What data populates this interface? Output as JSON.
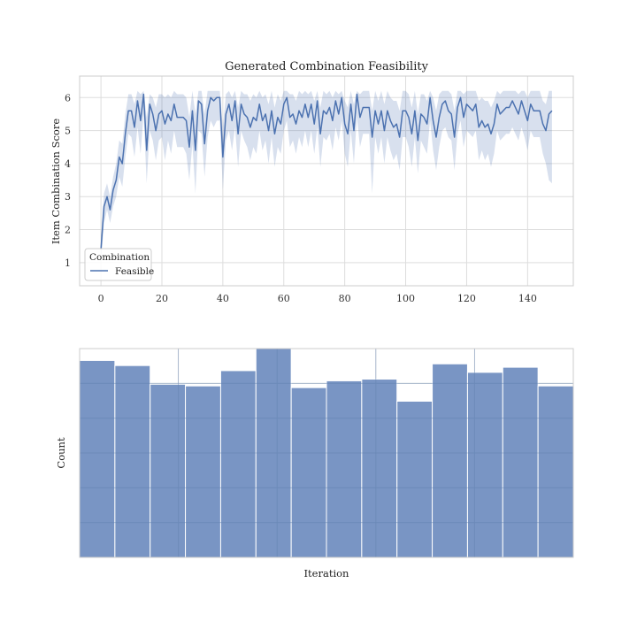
{
  "chart_data": [
    {
      "type": "line",
      "title": "Generated Combination Feasibility",
      "xlabel": "",
      "ylabel": "Item Combination Score",
      "xlim": [
        -7,
        155
      ],
      "ylim": [
        0.3,
        6.65
      ],
      "xticks": [
        0,
        20,
        40,
        60,
        80,
        100,
        120,
        140
      ],
      "yticks": [
        1,
        2,
        3,
        4,
        5,
        6
      ],
      "grid": true,
      "legend": {
        "title": "Combination",
        "placement": "lower-left"
      },
      "series": [
        {
          "name": "Feasible",
          "color": "#4c72b0",
          "x": [
            0,
            1,
            2,
            3,
            4,
            5,
            6,
            7,
            8,
            9,
            10,
            11,
            12,
            13,
            14,
            15,
            16,
            17,
            18,
            19,
            20,
            21,
            22,
            23,
            24,
            25,
            26,
            27,
            28,
            29,
            30,
            31,
            32,
            33,
            34,
            35,
            36,
            37,
            38,
            39,
            40,
            41,
            42,
            43,
            44,
            45,
            46,
            47,
            48,
            49,
            50,
            51,
            52,
            53,
            54,
            55,
            56,
            57,
            58,
            59,
            60,
            61,
            62,
            63,
            64,
            65,
            66,
            67,
            68,
            69,
            70,
            71,
            72,
            73,
            74,
            75,
            76,
            77,
            78,
            79,
            80,
            81,
            82,
            83,
            84,
            85,
            86,
            87,
            88,
            89,
            90,
            91,
            92,
            93,
            94,
            95,
            96,
            97,
            98,
            99,
            100,
            101,
            102,
            103,
            104,
            105,
            106,
            107,
            108,
            109,
            110,
            111,
            112,
            113,
            114,
            115,
            116,
            117,
            118,
            119,
            120,
            121,
            122,
            123,
            124,
            125,
            126,
            127,
            128,
            129,
            130,
            131,
            132,
            133,
            134,
            135,
            136,
            137,
            138,
            139,
            140,
            141,
            142,
            143,
            144,
            145,
            146,
            147,
            148
          ],
          "y": [
            1.4,
            2.7,
            3.0,
            2.6,
            3.2,
            3.5,
            4.2,
            4.0,
            4.9,
            5.6,
            5.6,
            5.1,
            5.9,
            5.3,
            6.1,
            4.4,
            5.8,
            5.5,
            5.0,
            5.5,
            5.6,
            5.2,
            5.5,
            5.3,
            5.8,
            5.4,
            5.4,
            5.4,
            5.3,
            4.5,
            5.6,
            4.4,
            5.9,
            5.8,
            4.6,
            5.6,
            6.0,
            5.9,
            6.0,
            6.0,
            4.2,
            5.5,
            5.8,
            5.3,
            5.9,
            4.9,
            5.8,
            5.5,
            5.4,
            5.1,
            5.4,
            5.3,
            5.8,
            5.3,
            5.5,
            5.0,
            5.6,
            4.9,
            5.4,
            5.2,
            5.8,
            6.0,
            5.4,
            5.5,
            5.2,
            5.6,
            5.4,
            5.8,
            5.4,
            5.8,
            5.2,
            5.9,
            4.9,
            5.6,
            5.5,
            5.7,
            5.3,
            5.9,
            5.5,
            6.0,
            5.2,
            4.9,
            5.8,
            5.0,
            6.1,
            5.4,
            5.7,
            5.7,
            5.7,
            4.8,
            5.6,
            5.2,
            5.6,
            5.0,
            5.6,
            5.3,
            5.1,
            5.2,
            4.8,
            5.6,
            5.6,
            5.4,
            4.9,
            5.6,
            4.7,
            5.5,
            5.4,
            5.2,
            6.0,
            5.3,
            4.8,
            5.4,
            5.8,
            5.9,
            5.6,
            5.5,
            4.8,
            5.7,
            6.0,
            5.4,
            5.8,
            5.7,
            5.6,
            5.8,
            5.1,
            5.3,
            5.1,
            5.2,
            4.9,
            5.2,
            5.8,
            5.5,
            5.6,
            5.7,
            5.7,
            5.9,
            5.7,
            5.5,
            5.9,
            5.6,
            5.3,
            5.8,
            5.6,
            5.6,
            5.6,
            5.2,
            5.0,
            5.5,
            5.6
          ],
          "ci_low": [
            1.0,
            2.2,
            2.6,
            2.2,
            2.7,
            3.0,
            3.6,
            3.3,
            4.2,
            4.9,
            4.8,
            4.2,
            5.1,
            4.3,
            5.5,
            3.4,
            5.0,
            4.7,
            4.1,
            4.7,
            4.8,
            4.1,
            4.7,
            4.3,
            5.0,
            4.5,
            4.5,
            4.5,
            4.3,
            3.5,
            4.6,
            3.1,
            5.0,
            4.9,
            3.6,
            4.8,
            5.3,
            5.1,
            5.3,
            5.3,
            3.2,
            4.7,
            5.0,
            4.4,
            5.1,
            3.9,
            5.0,
            4.7,
            4.5,
            4.1,
            4.5,
            4.3,
            5.0,
            4.4,
            4.7,
            4.0,
            4.8,
            3.9,
            4.5,
            4.3,
            5.0,
            5.3,
            4.5,
            4.7,
            4.3,
            4.8,
            4.5,
            5.0,
            4.5,
            5.0,
            4.3,
            5.1,
            3.9,
            4.8,
            4.7,
            4.9,
            4.4,
            5.1,
            4.7,
            5.3,
            4.3,
            3.9,
            5.0,
            4.0,
            5.4,
            4.5,
            4.9,
            4.9,
            4.9,
            3.1,
            4.8,
            4.3,
            4.8,
            4.0,
            4.8,
            4.4,
            4.1,
            4.3,
            3.8,
            4.8,
            4.8,
            4.5,
            3.9,
            4.8,
            3.7,
            4.7,
            4.5,
            4.3,
            5.3,
            4.4,
            3.8,
            4.5,
            5.0,
            5.1,
            4.8,
            4.7,
            3.8,
            4.9,
            5.3,
            4.5,
            5.0,
            4.9,
            4.8,
            5.0,
            4.1,
            4.4,
            4.1,
            4.3,
            3.9,
            4.3,
            5.0,
            4.7,
            4.8,
            4.9,
            4.9,
            5.1,
            4.9,
            4.7,
            5.1,
            4.8,
            4.4,
            5.0,
            4.8,
            4.8,
            4.8,
            4.3,
            4.0,
            3.5,
            3.4
          ],
          "ci_high": [
            1.8,
            3.1,
            3.4,
            3.0,
            3.6,
            4.0,
            4.7,
            4.6,
            5.5,
            6.1,
            6.1,
            5.8,
            6.2,
            6.1,
            6.2,
            5.4,
            6.1,
            6.0,
            5.7,
            6.1,
            6.1,
            6.0,
            6.1,
            6.0,
            6.2,
            6.1,
            6.1,
            6.1,
            6.0,
            5.4,
            6.2,
            5.5,
            6.2,
            6.2,
            5.5,
            6.2,
            6.2,
            6.2,
            6.2,
            6.2,
            5.1,
            6.1,
            6.2,
            6.0,
            6.2,
            5.7,
            6.2,
            6.1,
            6.1,
            5.9,
            6.1,
            6.0,
            6.2,
            6.0,
            6.1,
            5.8,
            6.2,
            5.7,
            6.1,
            5.9,
            6.2,
            6.2,
            6.1,
            6.1,
            5.9,
            6.2,
            6.1,
            6.2,
            6.1,
            6.2,
            5.9,
            6.2,
            5.7,
            6.2,
            6.1,
            6.2,
            6.0,
            6.2,
            6.1,
            6.2,
            5.9,
            5.7,
            6.2,
            5.8,
            6.2,
            6.1,
            6.2,
            6.2,
            6.2,
            5.6,
            6.2,
            5.9,
            6.2,
            5.8,
            6.2,
            6.0,
            5.9,
            5.9,
            5.6,
            6.2,
            6.2,
            6.1,
            5.7,
            6.2,
            5.5,
            6.1,
            6.1,
            5.9,
            6.2,
            6.0,
            5.6,
            6.1,
            6.2,
            6.2,
            6.2,
            6.1,
            5.6,
            6.2,
            6.2,
            6.1,
            6.2,
            6.2,
            6.2,
            6.2,
            5.9,
            6.0,
            5.9,
            5.9,
            5.7,
            5.9,
            6.2,
            6.1,
            6.2,
            6.2,
            6.2,
            6.2,
            6.2,
            6.1,
            6.2,
            6.2,
            6.0,
            6.2,
            6.2,
            6.2,
            6.2,
            5.9,
            5.8,
            6.2,
            6.2
          ]
        }
      ]
    },
    {
      "type": "bar",
      "title": "",
      "xlabel": "Iteration",
      "ylabel": "Count",
      "xticks": [],
      "yticks": [],
      "grid": true,
      "color": "#4c72b0",
      "bins": 14,
      "values": [
        11.6,
        11.3,
        10.2,
        10.1,
        11.0,
        12.3,
        10.0,
        10.4,
        10.5,
        9.2,
        11.4,
        10.9,
        11.2,
        10.1
      ],
      "ylim": [
        0,
        12.3
      ]
    }
  ]
}
